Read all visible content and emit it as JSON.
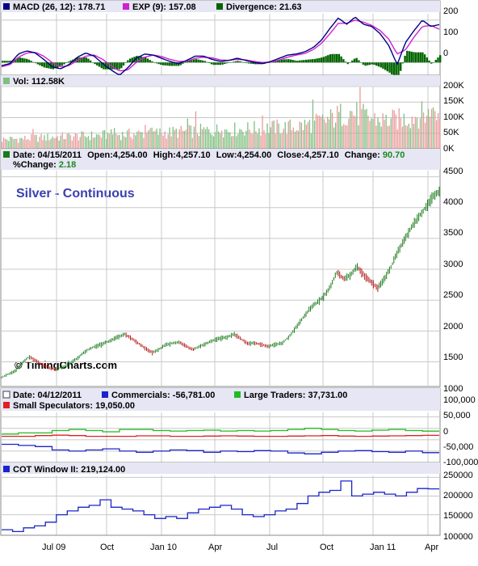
{
  "colors": {
    "panel_bg": "#ffffff",
    "header_bg": "#e6e6f4",
    "grid": "#c8c8c8",
    "macd_line": "#000080",
    "exp_line": "#d020d0",
    "divergence": "#006400",
    "vol_up": "#7fbf7f",
    "vol_down": "#e89a9a",
    "price_up": "#1a7a1a",
    "price_down": "#b01818",
    "commercials": "#1a24c8",
    "large_traders": "#22bb22",
    "small_spec": "#dd2222",
    "cot_window": "#1a24c8",
    "title_text": "#3a40b0"
  },
  "panels": {
    "macd": {
      "label": "MACD (26, 12): 178.71",
      "exp_label": "EXP (9): 157.08",
      "div_label": "Divergence: 21.63",
      "ticks": [
        "200",
        "100",
        "0"
      ]
    },
    "volume": {
      "label": "Vol: 112.58K",
      "ticks": [
        "200K",
        "150K",
        "100K",
        "50K",
        "0K"
      ]
    },
    "price": {
      "line1_date": "Date: 04/15/2011",
      "line1_open": "Open:4,254.00",
      "line1_high": "High:4,257.10",
      "line1_low": "Low:4,254.00",
      "line1_close": "Close:4,257.10",
      "line1_change_label": "Change:",
      "line1_change_value": "90.70",
      "line2_pct_label": "%Change:",
      "line2_pct_value": "2.18",
      "title": "Silver - Continuous",
      "watermark": "© TimingCharts.com",
      "ticks": [
        "4500",
        "4000",
        "3500",
        "3000",
        "2500",
        "2000",
        "1500"
      ]
    },
    "cot": {
      "date": "Date: 04/12/2011",
      "commercials": "Commercials: -56,781.00",
      "large": "Large Traders: 37,731.00",
      "small": "Small Speculators: 19,050.00",
      "ticks": [
        "100,000",
        "50,000",
        "0",
        "-50,000",
        "-100,000"
      ],
      "tick_top": "1000"
    },
    "cot_window": {
      "label": "COT Window II: 219,124.00",
      "ticks": [
        "250000",
        "200000",
        "150000",
        "100000"
      ]
    }
  },
  "x_axis": {
    "labels": [
      "Jul 09",
      "Oct",
      "Jan 10",
      "Apr",
      "Jul",
      "Oct",
      "Jan 11",
      "Apr"
    ]
  },
  "chart_data": [
    {
      "type": "line",
      "title": "",
      "series": [
        {
          "name": "MACD (26, 12)",
          "last": 178.71,
          "values": [
            -15,
            -5,
            40,
            55,
            45,
            15,
            -20,
            -30,
            -10,
            25,
            45,
            30,
            -5,
            -35,
            -60,
            -25,
            20,
            40,
            35,
            20,
            5,
            -5,
            10,
            30,
            30,
            15,
            5,
            10,
            20,
            10,
            0,
            -5,
            5,
            20,
            35,
            40,
            50,
            70,
            105,
            160,
            210,
            180,
            215,
            180,
            170,
            135,
            80,
            -10,
            95,
            150,
            200,
            170,
            178.71
          ]
        },
        {
          "name": "EXP (9)",
          "last": 157.08,
          "values": [
            -20,
            -10,
            25,
            45,
            48,
            30,
            0,
            -20,
            -15,
            10,
            30,
            35,
            15,
            -15,
            -40,
            -35,
            0,
            25,
            35,
            28,
            15,
            5,
            5,
            20,
            25,
            22,
            12,
            10,
            15,
            12,
            5,
            0,
            2,
            12,
            25,
            35,
            42,
            60,
            90,
            135,
            185,
            185,
            200,
            190,
            175,
            150,
            110,
            40,
            60,
            120,
            170,
            175,
            157.08
          ]
        },
        {
          "name": "Divergence",
          "last": 21.63
        }
      ],
      "ylim": [
        -60,
        230
      ]
    },
    {
      "type": "bar",
      "title": "",
      "series": [
        {
          "name": "Vol",
          "last_label": "112.58K"
        }
      ],
      "ylim": [
        0,
        200000
      ],
      "volume_profile": [
        30000,
        32000,
        35000,
        38000,
        40000,
        42000,
        45000,
        47000,
        50000,
        52000,
        55000,
        58000,
        60000,
        62000,
        65000,
        68000,
        70000,
        80000,
        95000,
        120000,
        100000,
        90000,
        95000,
        110000,
        112580
      ]
    },
    {
      "type": "line",
      "title": "Silver - Continuous",
      "series": [
        {
          "name": "Close",
          "values": [
            1250,
            1300,
            1350,
            1480,
            1580,
            1520,
            1450,
            1400,
            1380,
            1420,
            1480,
            1550,
            1650,
            1720,
            1760,
            1800,
            1850,
            1900,
            1950,
            1880,
            1800,
            1720,
            1650,
            1700,
            1780,
            1800,
            1820,
            1750,
            1700,
            1750,
            1800,
            1850,
            1880,
            1900,
            1950,
            1870,
            1800,
            1800,
            1780,
            1750,
            1780,
            1800,
            1900,
            2050,
            2200,
            2350,
            2450,
            2550,
            2700,
            2950,
            2850,
            2900,
            3050,
            2900,
            2800,
            2700,
            2850,
            3050,
            3300,
            3500,
            3700,
            3850,
            4000,
            4170,
            4257.1
          ]
        }
      ],
      "ylim": [
        1100,
        4600
      ]
    },
    {
      "type": "line",
      "title": "",
      "series": [
        {
          "name": "Commercials",
          "last": -56781,
          "values": [
            -20000,
            -25000,
            -30000,
            -45000,
            -50000,
            -45000,
            -40000,
            -50000,
            -55000,
            -50000,
            -45000,
            -48000,
            -55000,
            -50000,
            -52000,
            -48000,
            -50000,
            -58000,
            -62000,
            -55000,
            -50000,
            -48000,
            -52000,
            -55000,
            -50000,
            -56781
          ]
        },
        {
          "name": "Large Traders",
          "last": 37731,
          "values": [
            25000,
            30000,
            30000,
            40000,
            45000,
            40000,
            35000,
            45000,
            45000,
            40000,
            38000,
            40000,
            42000,
            38000,
            40000,
            38000,
            40000,
            45000,
            50000,
            45000,
            40000,
            38000,
            42000,
            45000,
            40000,
            37731
          ]
        },
        {
          "name": "Small Speculators",
          "last": 19050,
          "values": [
            15000,
            15000,
            18000,
            20000,
            18000,
            15000,
            15000,
            15000,
            17000,
            17000,
            15000,
            15000,
            16000,
            17000,
            16000,
            15000,
            15000,
            16000,
            17000,
            18000,
            16000,
            15000,
            16000,
            17000,
            18000,
            19050
          ]
        }
      ],
      "ylim": [
        -100000,
        120000
      ]
    },
    {
      "type": "line",
      "title": "",
      "series": [
        {
          "name": "COT Window II",
          "last": 219124,
          "values": [
            110000,
            105000,
            115000,
            120000,
            130000,
            150000,
            160000,
            170000,
            175000,
            190000,
            170000,
            165000,
            160000,
            150000,
            140000,
            145000,
            140000,
            155000,
            165000,
            170000,
            175000,
            165000,
            150000,
            145000,
            150000,
            160000,
            165000,
            180000,
            200000,
            210000,
            215000,
            240000,
            200000,
            205000,
            210000,
            205000,
            200000,
            210000,
            220000,
            219124
          ]
        }
      ],
      "ylim": [
        95000,
        255000
      ]
    }
  ]
}
